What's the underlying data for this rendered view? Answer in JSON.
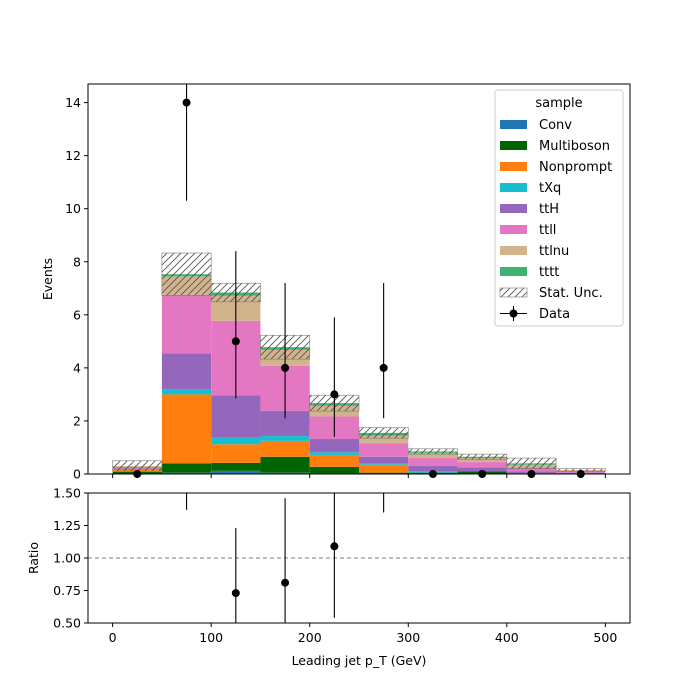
{
  "chart_data": [
    {
      "type": "bar",
      "stacked": true,
      "xlabel": "Leading jet  p_T (GeV)",
      "ylabel": "Events",
      "xlim": [
        -25,
        525
      ],
      "ylim": [
        0,
        14.7
      ],
      "bin_edges": [
        0,
        50,
        100,
        150,
        200,
        250,
        300,
        350,
        400,
        450,
        500
      ],
      "x_ticks": [
        0,
        100,
        200,
        300,
        400,
        500
      ],
      "y_ticks": [
        0,
        2,
        4,
        6,
        8,
        10,
        12,
        14
      ],
      "series": [
        {
          "name": "Conv",
          "color": "#1f77b4",
          "values": [
            0.0,
            0.05,
            0.12,
            0.05,
            0.02,
            0.0,
            0.0,
            0.0,
            0.0,
            0.0
          ]
        },
        {
          "name": "Multiboson",
          "color": "#006400",
          "values": [
            0.08,
            0.35,
            0.3,
            0.6,
            0.25,
            0.05,
            0.05,
            0.1,
            0.0,
            0.0
          ]
        },
        {
          "name": "Nonprompt",
          "color": "#ff7f0e",
          "values": [
            0.12,
            2.6,
            0.7,
            0.6,
            0.45,
            0.3,
            0.0,
            0.0,
            0.0,
            0.0
          ]
        },
        {
          "name": "tXq",
          "color": "#17becf",
          "values": [
            0.0,
            0.2,
            0.25,
            0.18,
            0.1,
            0.05,
            0.05,
            0.0,
            0.0,
            0.0
          ]
        },
        {
          "name": "ttH",
          "color": "#9467bd",
          "values": [
            0.05,
            1.35,
            1.6,
            0.95,
            0.5,
            0.25,
            0.2,
            0.15,
            0.1,
            0.05
          ]
        },
        {
          "name": "ttll",
          "color": "#e377c2",
          "values": [
            0.0,
            2.2,
            2.8,
            1.7,
            0.85,
            0.5,
            0.3,
            0.2,
            0.15,
            0.05
          ]
        },
        {
          "name": "ttlnu",
          "color": "#d2b48c",
          "values": [
            0.05,
            0.7,
            0.95,
            0.6,
            0.4,
            0.3,
            0.2,
            0.15,
            0.1,
            0.05
          ]
        },
        {
          "name": "tttt",
          "color": "#3cb371",
          "values": [
            0.0,
            0.08,
            0.12,
            0.1,
            0.1,
            0.1,
            0.05,
            0.05,
            0.05,
            0.0
          ]
        }
      ],
      "stat_unc": {
        "name": "Stat. Unc.",
        "values": [
          0.2,
          0.8,
          0.35,
          0.45,
          0.3,
          0.2,
          0.1,
          0.1,
          0.2,
          0.05
        ]
      },
      "data": {
        "name": "Data",
        "x": [
          25,
          75,
          125,
          175,
          225,
          275,
          325,
          375,
          425,
          475
        ],
        "y": [
          0,
          14,
          5,
          4,
          3,
          4,
          0,
          0,
          0,
          0
        ],
        "err_low": [
          0,
          3.7,
          2.15,
          1.9,
          1.6,
          1.9,
          0,
          0,
          0,
          0
        ],
        "err_high": [
          0,
          4.7,
          3.4,
          3.2,
          2.9,
          3.2,
          0,
          0,
          0,
          0
        ]
      },
      "legend": {
        "title": "sample",
        "placement": "top-right"
      }
    },
    {
      "type": "scatter",
      "xlabel": "Leading jet  p_T (GeV)",
      "ylabel": "Ratio",
      "xlim": [
        -25,
        525
      ],
      "ylim": [
        0.5,
        1.5
      ],
      "x_ticks": [
        0,
        100,
        200,
        300,
        400,
        500
      ],
      "y_ticks": [
        0.5,
        0.75,
        1.0,
        1.25,
        1.5
      ],
      "y_tick_labels": [
        "0.50",
        "0.75",
        "1.00",
        "1.25",
        "1.50"
      ],
      "reference_line": 1.0,
      "points": {
        "x": [
          125,
          175,
          225
        ],
        "y": [
          0.73,
          0.81,
          1.09
        ],
        "err_low": [
          0.5,
          0.5,
          0.55
        ],
        "err_high": [
          0.5,
          0.65,
          1.0
        ]
      },
      "off_scale_error_bars": [
        {
          "x": 75,
          "y_from": 1.37,
          "y_to": 1.5
        },
        {
          "x": 275,
          "y_from": 1.35,
          "y_to": 1.5
        }
      ]
    }
  ]
}
